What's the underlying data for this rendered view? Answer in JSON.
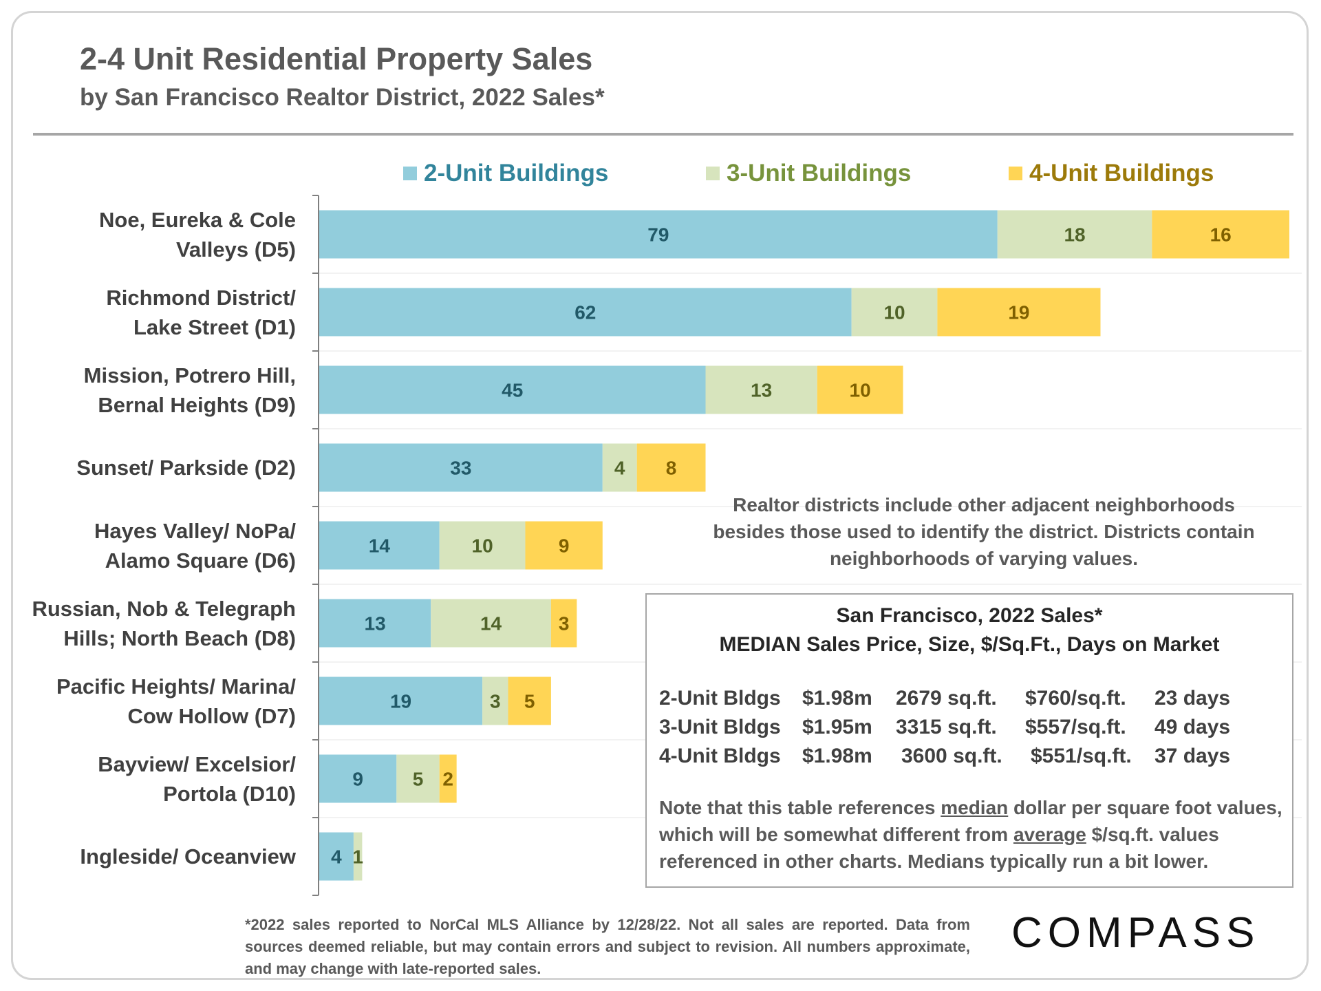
{
  "title": "2-4 Unit Residential Property Sales",
  "subtitle": "by San Francisco Realtor District, 2022 Sales*",
  "legend": [
    {
      "label": "2-Unit Buildings",
      "color": "#92cddc",
      "text_color": "#31849b"
    },
    {
      "label": "3-Unit Buildings",
      "color": "#d7e4bd",
      "text_color": "#77933c"
    },
    {
      "label": "4-Unit Buildings",
      "color": "#ffd555",
      "text_color": "#9c7a0a"
    }
  ],
  "chart_data": {
    "type": "bar",
    "orientation": "horizontal",
    "stacked": true,
    "title": "2-4 Unit Residential Property Sales",
    "subtitle": "by San Francisco Realtor District, 2022 Sales*",
    "categories": [
      [
        "Noe, Eureka & Cole",
        "Valleys (D5)"
      ],
      [
        "Richmond District/",
        "Lake Street (D1)"
      ],
      [
        "Mission, Potrero Hill,",
        "Bernal Heights (D9)"
      ],
      [
        "Sunset/ Parkside (D2)"
      ],
      [
        "Hayes Valley/ NoPa/",
        "Alamo Square (D6)"
      ],
      [
        "Russian, Nob & Telegraph",
        "Hills; North Beach (D8)"
      ],
      [
        "Pacific Heights/ Marina/",
        "Cow Hollow (D7)"
      ],
      [
        "Bayview/ Excelsior/",
        "Portola (D10)"
      ],
      [
        "Ingleside/ Oceanview"
      ]
    ],
    "series": [
      {
        "name": "2-Unit Buildings",
        "color": "#92cddc",
        "label_color": "#215968",
        "values": [
          79,
          62,
          45,
          33,
          14,
          13,
          19,
          9,
          4
        ]
      },
      {
        "name": "3-Unit Buildings",
        "color": "#d7e4bd",
        "label_color": "#4f6228",
        "values": [
          18,
          10,
          13,
          4,
          10,
          14,
          3,
          5,
          1
        ]
      },
      {
        "name": "4-Unit Buildings",
        "color": "#ffd555",
        "label_color": "#7f6000",
        "values": [
          16,
          19,
          10,
          8,
          9,
          3,
          5,
          2,
          0
        ]
      }
    ],
    "xlim": [
      0,
      113
    ],
    "xlabel": "",
    "ylabel": "",
    "grid": false,
    "legend": "top"
  },
  "note": "Realtor districts include other adjacent neighborhoods besides those used to identify the district. Districts contain neighborhoods of varying values.",
  "stats": {
    "title_line1": "San Francisco, 2022 Sales*",
    "title_line2": "MEDIAN Sales Price, Size, $/Sq.Ft., Days on Market",
    "rows": [
      {
        "type": "2-Unit Bldgs",
        "price": "$1.98m",
        "size": "2679 sq.ft.",
        "ppsf": "$760/sq.ft.",
        "dom": "23 days"
      },
      {
        "type": "3-Unit Bldgs",
        "price": "$1.95m",
        "size": "3315 sq.ft.",
        "ppsf": "$557/sq.ft.",
        "dom": "49 days"
      },
      {
        "type": "4-Unit Bldgs",
        "price": "$1.98m",
        "size": "3600 sq.ft.",
        "ppsf": "$551/sq.ft.",
        "dom": "37 days"
      }
    ],
    "note_part1": "Note that this table references ",
    "note_u1": "median",
    "note_part2": " dollar per square foot values, which will be somewhat different from ",
    "note_u2": "average",
    "note_part3": " $/sq.ft. values referenced in other charts. Medians typically run a bit lower."
  },
  "footnote": "*2022 sales reported to NorCal MLS Alliance by 12/28/22. Not all sales are reported. Data from sources deemed reliable, but may contain errors and subject to revision. All numbers approximate, and may change with late-reported sales.",
  "brand": "COMPASS"
}
